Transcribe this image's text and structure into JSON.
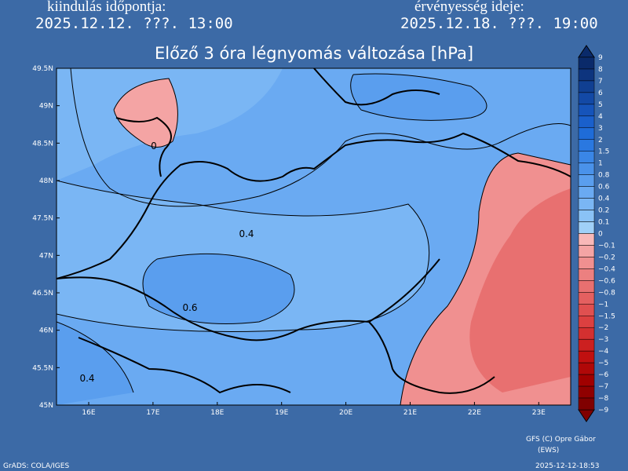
{
  "header": {
    "start_label": "kiindulás időpontja:",
    "start_time": "2025.12.12. ???. 13:00",
    "valid_label": "érvényesség ideje:",
    "valid_time": "2025.12.18. ???. 19:00"
  },
  "title": "Előző 3 óra légnyomás változása [hPa]",
  "map": {
    "lat_labels": [
      "49.5N",
      "49N",
      "48.5N",
      "48N",
      "47.5N",
      "47N",
      "46.5N",
      "46N",
      "45.5N",
      "45N"
    ],
    "lon_labels": [
      "16E",
      "17E",
      "18E",
      "19E",
      "20E",
      "21E",
      "22E",
      "23E"
    ],
    "contour_labels": [
      "0",
      "0.4",
      "0.6",
      "0.4"
    ]
  },
  "colorbar": {
    "labels": [
      "9",
      "8",
      "7",
      "6",
      "5",
      "4",
      "3",
      "2",
      "1.5",
      "1",
      "0.8",
      "0.6",
      "0.4",
      "0.2",
      "0.1",
      "0",
      "−0.1",
      "−0.2",
      "−0.4",
      "−0.6",
      "−0.8",
      "−1",
      "−1.5",
      "−2",
      "−3",
      "−4",
      "−5",
      "−6",
      "−7",
      "−8",
      "−9"
    ],
    "colors": [
      "#0a2a6a",
      "#0d347e",
      "#103f92",
      "#1349a6",
      "#1654ba",
      "#1a60cc",
      "#1f6cd8",
      "#2a78e0",
      "#3a86e6",
      "#4a92ea",
      "#5a9eee",
      "#6aaaf2",
      "#7ab6f4",
      "#8ac2f6",
      "#a0d0f8",
      "#f8b8b8",
      "#f4a4a4",
      "#f09090",
      "#ec8080",
      "#e87070",
      "#e46060",
      "#e05050",
      "#dc4040",
      "#d43030",
      "#cc2020",
      "#c01010",
      "#b00808",
      "#a00000",
      "#900000",
      "#800000"
    ]
  },
  "footer": {
    "credit": "GFS (C) Opre Gábor",
    "credit2": "(EWS)",
    "software": "GrADS: COLA/IGES",
    "timestamp": "2025-12-12-18:53"
  }
}
